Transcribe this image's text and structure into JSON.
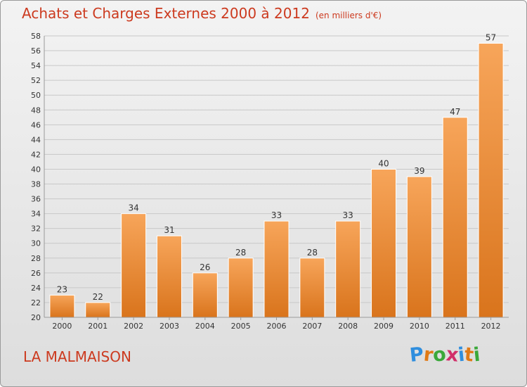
{
  "header": {
    "title": "Achats et Charges Externes 2000 à 2012",
    "subtitle": "(en milliers d'€)"
  },
  "footer": {
    "place": "LA MALMAISON",
    "brand": "Proxiti",
    "brand_letters": [
      "P",
      "r",
      "o",
      "x",
      "i",
      "t",
      "i"
    ],
    "brand_colors": [
      "#2f8ede",
      "#e07a16",
      "#3aa83a",
      "#d12f6a",
      "#2f8ede",
      "#e07a16",
      "#3aa83a"
    ]
  },
  "colors": {
    "bar_top": "#f7a55a",
    "bar_bottom": "#d9741c",
    "title": "#cc3a1f",
    "grid": "#c8c8c8",
    "text": "#333333"
  },
  "chart_data": {
    "type": "bar",
    "title": "Achats et Charges Externes 2000 à 2012",
    "subtitle": "(en milliers d'€)",
    "xlabel": "",
    "ylabel": "",
    "categories": [
      "2000",
      "2001",
      "2002",
      "2003",
      "2004",
      "2005",
      "2006",
      "2007",
      "2008",
      "2009",
      "2010",
      "2011",
      "2012"
    ],
    "values": [
      23,
      22,
      34,
      31,
      26,
      28,
      33,
      28,
      33,
      40,
      39,
      47,
      57
    ],
    "ylim": [
      20,
      58
    ],
    "yticks": [
      20,
      22,
      24,
      26,
      28,
      30,
      32,
      34,
      36,
      38,
      40,
      42,
      44,
      46,
      48,
      50,
      52,
      54,
      56,
      58
    ],
    "grid": true,
    "data_labels": true
  }
}
